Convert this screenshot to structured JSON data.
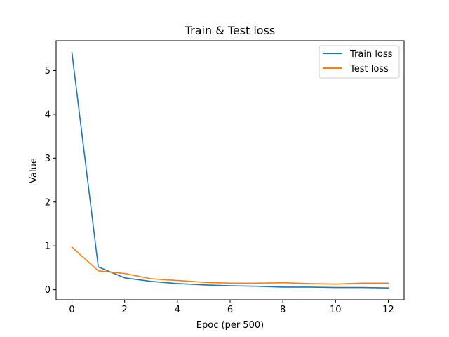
{
  "chart_data": {
    "type": "line",
    "title": "Train & Test loss",
    "xlabel": "Epoc (per 500)",
    "ylabel": "Value",
    "xlim": [
      -0.6,
      12.6
    ],
    "ylim": [
      -0.23,
      5.68
    ],
    "xticks": [
      0,
      2,
      4,
      6,
      8,
      10,
      12
    ],
    "yticks": [
      0,
      1,
      2,
      3,
      4,
      5
    ],
    "x": [
      0,
      1,
      2,
      3,
      4,
      5,
      6,
      7,
      8,
      9,
      10,
      11,
      12
    ],
    "grid": false,
    "legend_position": "top-right",
    "series": [
      {
        "name": "Train loss",
        "color": "#1f77b4",
        "values": [
          5.41,
          0.52,
          0.27,
          0.19,
          0.14,
          0.11,
          0.09,
          0.08,
          0.06,
          0.06,
          0.05,
          0.05,
          0.04
        ]
      },
      {
        "name": "Test loss",
        "color": "#ff7f0e",
        "values": [
          0.97,
          0.43,
          0.37,
          0.25,
          0.21,
          0.17,
          0.15,
          0.15,
          0.16,
          0.14,
          0.13,
          0.15,
          0.15
        ]
      }
    ]
  }
}
